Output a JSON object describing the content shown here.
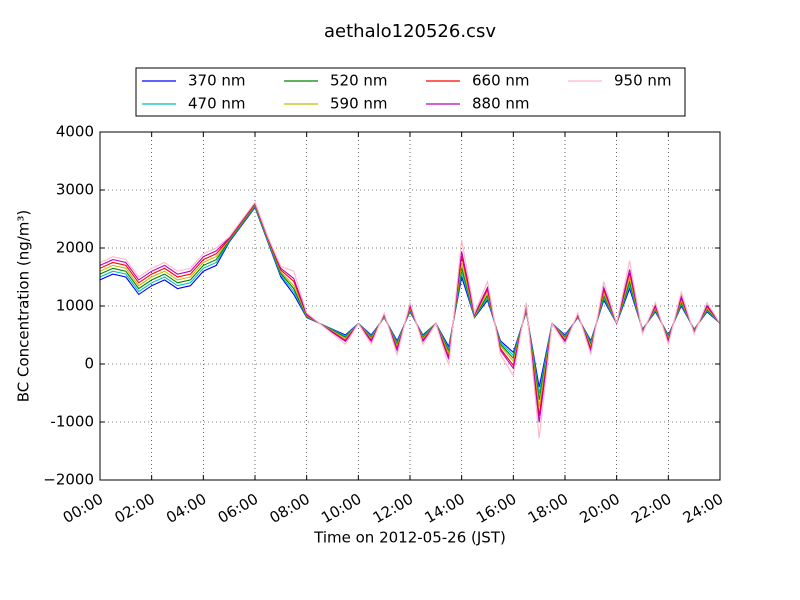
{
  "chart_data": {
    "type": "line",
    "title": "aethalo120526.csv",
    "xlabel": "Time on 2012-05-26 (JST)",
    "ylabel": "BC Concentration (ng/m³)",
    "x": [
      0,
      0.5,
      1,
      1.5,
      2,
      2.5,
      3,
      3.5,
      4,
      4.5,
      5,
      5.5,
      6,
      6.5,
      7,
      7.5,
      8,
      8.5,
      9,
      9.5,
      10,
      10.5,
      11,
      11.5,
      12,
      12.5,
      13,
      13.5,
      14,
      14.5,
      15,
      15.5,
      16,
      16.5,
      17,
      17.5,
      18,
      18.5,
      19,
      19.5,
      20,
      20.5,
      21,
      21.5,
      22,
      22.5,
      23,
      23.5,
      24
    ],
    "xlim": [
      0,
      24
    ],
    "xticks": [
      {
        "value": 0,
        "label": "00:00"
      },
      {
        "value": 2,
        "label": "02:00"
      },
      {
        "value": 4,
        "label": "04:00"
      },
      {
        "value": 6,
        "label": "06:00"
      },
      {
        "value": 8,
        "label": "08:00"
      },
      {
        "value": 10,
        "label": "10:00"
      },
      {
        "value": 12,
        "label": "12:00"
      },
      {
        "value": 14,
        "label": "14:00"
      },
      {
        "value": 16,
        "label": "16:00"
      },
      {
        "value": 18,
        "label": "18:00"
      },
      {
        "value": 20,
        "label": "20:00"
      },
      {
        "value": 22,
        "label": "22:00"
      },
      {
        "value": 24,
        "label": "24:00"
      }
    ],
    "ylim": [
      -2000,
      4000
    ],
    "yticks": [
      {
        "value": -2000,
        "label": "−2000"
      },
      -1000,
      0,
      1000,
      2000,
      3000,
      4000
    ],
    "grid": true,
    "legend": "top",
    "series": [
      {
        "name": "370 nm",
        "color": "#0000ff",
        "values": [
          1450,
          1550,
          1500,
          1200,
          1350,
          1450,
          1300,
          1350,
          1600,
          1700,
          2100,
          2400,
          2700,
          2100,
          1500,
          1200,
          800,
          700,
          600,
          500,
          700,
          500,
          800,
          400,
          900,
          500,
          700,
          300,
          1500,
          800,
          1100,
          400,
          200,
          900,
          -400,
          700,
          500,
          800,
          400,
          1100,
          700,
          1300,
          600,
          900,
          500,
          1000,
          600,
          900,
          700
        ]
      },
      {
        "name": "470 nm",
        "color": "#00bfbf",
        "values": [
          1500,
          1600,
          1550,
          1250,
          1400,
          1500,
          1350,
          1400,
          1650,
          1750,
          2115,
          2415,
          2715,
          2115,
          1530,
          1250,
          810,
          700,
          590,
          480,
          700,
          480,
          810,
          370,
          920,
          480,
          700,
          260,
          1580,
          810,
          1140,
          370,
          150,
          920,
          -510,
          700,
          480,
          810,
          370,
          1140,
          700,
          1360,
          590,
          920,
          480,
          1030,
          590,
          920,
          700
        ]
      },
      {
        "name": "520 nm",
        "color": "#008000",
        "values": [
          1550,
          1650,
          1600,
          1300,
          1450,
          1550,
          1400,
          1450,
          1700,
          1800,
          2130,
          2430,
          2730,
          2130,
          1560,
          1300,
          820,
          700,
          580,
          460,
          700,
          460,
          820,
          340,
          940,
          460,
          700,
          220,
          1660,
          820,
          1180,
          340,
          100,
          940,
          -620,
          700,
          460,
          820,
          340,
          1180,
          700,
          1420,
          580,
          940,
          460,
          1060,
          580,
          940,
          700
        ]
      },
      {
        "name": "590 nm",
        "color": "#bfbf00",
        "values": [
          1600,
          1700,
          1650,
          1350,
          1500,
          1600,
          1450,
          1500,
          1750,
          1850,
          2145,
          2445,
          2745,
          2145,
          1590,
          1350,
          830,
          700,
          570,
          440,
          700,
          440,
          830,
          310,
          960,
          440,
          700,
          180,
          1740,
          830,
          1220,
          310,
          50,
          960,
          -730,
          700,
          440,
          830,
          310,
          1220,
          700,
          1480,
          570,
          960,
          440,
          1090,
          570,
          960,
          700
        ]
      },
      {
        "name": "660 nm",
        "color": "#ff0000",
        "values": [
          1650,
          1750,
          1700,
          1400,
          1550,
          1650,
          1500,
          1550,
          1800,
          1900,
          2160,
          2460,
          2760,
          2160,
          1620,
          1425,
          845,
          700,
          555,
          410,
          700,
          410,
          845,
          265,
          990,
          410,
          700,
          120,
          1860,
          845,
          1280,
          265,
          -25,
          990,
          -895,
          700,
          410,
          845,
          265,
          1280,
          700,
          1570,
          555,
          990,
          410,
          1135,
          555,
          990,
          700
        ]
      },
      {
        "name": "880 nm",
        "color": "#bf00bf",
        "values": [
          1700,
          1800,
          1750,
          1450,
          1600,
          1700,
          1550,
          1600,
          1850,
          1950,
          2175,
          2475,
          2775,
          2175,
          1650,
          1475,
          855,
          700,
          545,
          390,
          700,
          390,
          855,
          235,
          1010,
          390,
          700,
          80,
          1940,
          855,
          1320,
          235,
          -75,
          1010,
          -1005,
          700,
          390,
          855,
          235,
          1320,
          700,
          1630,
          545,
          1010,
          390,
          1165,
          545,
          1010,
          700
        ]
      },
      {
        "name": "950 nm",
        "color": "#ffb6c8",
        "values": [
          1750,
          1850,
          1800,
          1500,
          1650,
          1750,
          1600,
          1650,
          1900,
          2000,
          2190,
          2490,
          2790,
          2190,
          1680,
          1600,
          880,
          700,
          520,
          340,
          700,
          340,
          880,
          160,
          1060,
          340,
          700,
          -20,
          2140,
          880,
          1420,
          160,
          -200,
          1060,
          -1280,
          700,
          340,
          880,
          160,
          1420,
          700,
          1780,
          520,
          1060,
          340,
          1240,
          520,
          1060,
          700
        ]
      }
    ]
  }
}
